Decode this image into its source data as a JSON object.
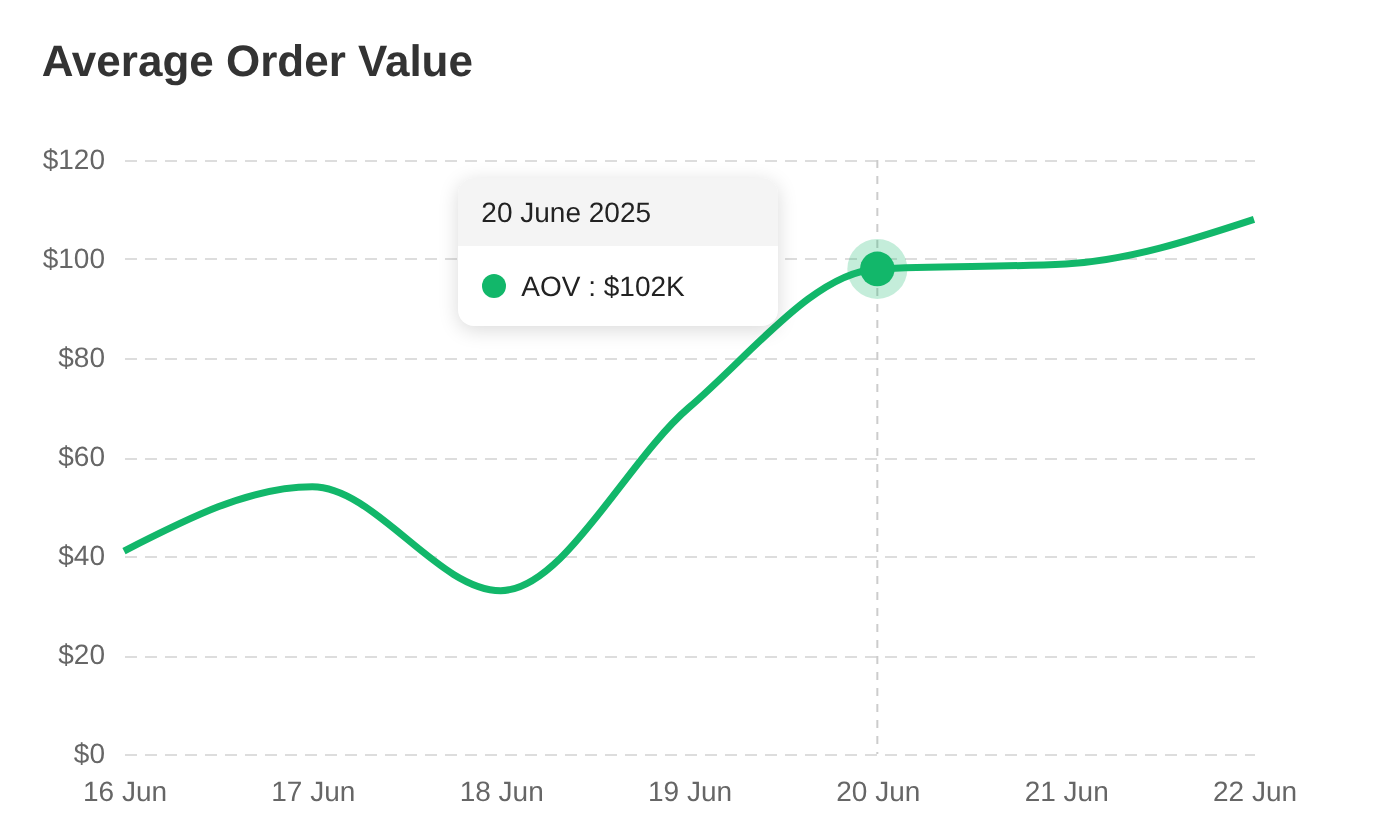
{
  "chart_data": {
    "type": "line",
    "title": "Average Order Value",
    "categories": [
      "16 Jun",
      "17 Jun",
      "18 Jun",
      "19 Jun",
      "20 Jun",
      "21 Jun",
      "22 Jun"
    ],
    "series": [
      {
        "color": "#12b76a",
        "values": [
          41,
          54,
          33,
          70,
          98,
          99,
          108
        ]
      }
    ],
    "ylim": [
      0,
      120
    ],
    "yticks": [
      {
        "value": 0,
        "label": "$0"
      },
      {
        "value": 20,
        "label": "$20"
      },
      {
        "value": 40,
        "label": "$40"
      },
      {
        "value": 60,
        "label": "$60"
      },
      {
        "value": 80,
        "label": "$80"
      },
      {
        "value": 100,
        "label": "$100"
      },
      {
        "value": 120,
        "label": "$120"
      }
    ],
    "grid": "y",
    "marker": "none",
    "line_style": "solid",
    "ref_lines": [
      {
        "axis": "x",
        "value": "20 Jun",
        "color": "#cccccc",
        "line_style": "dashed"
      }
    ],
    "annotations": [
      "20 June 2025",
      "AOV : $102K"
    ]
  }
}
